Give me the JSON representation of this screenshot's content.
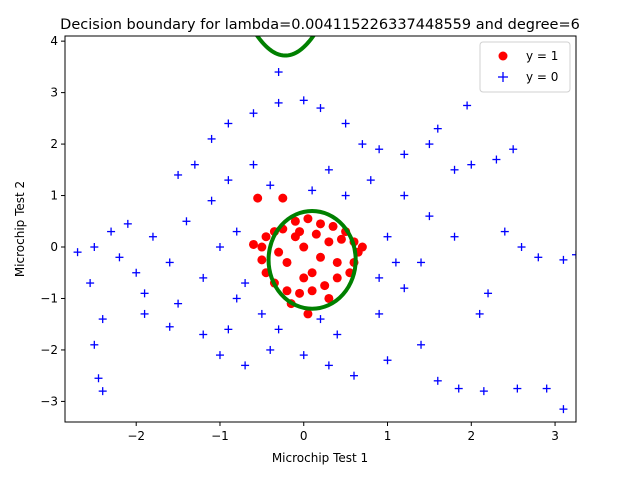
{
  "chart_data": {
    "type": "scatter",
    "title": "Decision boundary for lambda=0.004115226337448559 and degree=6",
    "xlabel": "Microchip Test 1",
    "ylabel": "Microchip Test 2",
    "xlim": [
      -2.85,
      3.25
    ],
    "ylim": [
      -3.4,
      4.1
    ],
    "xticks": [
      -2,
      -1,
      0,
      1,
      2,
      3
    ],
    "yticks": [
      -3,
      -2,
      -1,
      0,
      1,
      2,
      3,
      4
    ],
    "grid": false,
    "legend": {
      "placement": "top-right"
    },
    "series": [
      {
        "name": "y = 1",
        "marker": "circle",
        "color": "#ff0000",
        "points": [
          [
            -0.25,
            0.35
          ],
          [
            -0.1,
            0.5
          ],
          [
            0.05,
            0.55
          ],
          [
            0.2,
            0.45
          ],
          [
            0.35,
            0.4
          ],
          [
            0.5,
            0.3
          ],
          [
            0.6,
            0.1
          ],
          [
            0.65,
            -0.1
          ],
          [
            0.6,
            -0.3
          ],
          [
            0.55,
            -0.5
          ],
          [
            0.4,
            -0.6
          ],
          [
            0.25,
            -0.75
          ],
          [
            0.1,
            -0.85
          ],
          [
            -0.05,
            -0.9
          ],
          [
            -0.2,
            -0.85
          ],
          [
            -0.35,
            -0.7
          ],
          [
            -0.45,
            -0.5
          ],
          [
            -0.5,
            -0.25
          ],
          [
            -0.5,
            0.0
          ],
          [
            -0.45,
            0.2
          ],
          [
            -0.35,
            0.3
          ],
          [
            0.0,
            0.0
          ],
          [
            0.2,
            -0.2
          ],
          [
            -0.2,
            -0.3
          ],
          [
            0.3,
            0.1
          ],
          [
            -0.1,
            0.2
          ],
          [
            0.1,
            -0.5
          ],
          [
            -0.3,
            -0.1
          ],
          [
            0.4,
            -0.3
          ],
          [
            0.0,
            -0.6
          ],
          [
            0.15,
            0.25
          ],
          [
            -0.25,
            0.95
          ],
          [
            -0.55,
            0.95
          ],
          [
            -0.6,
            0.05
          ],
          [
            0.7,
            0.0
          ],
          [
            0.05,
            -1.3
          ],
          [
            -0.15,
            -1.1
          ],
          [
            0.3,
            -1.0
          ],
          [
            -0.05,
            0.3
          ],
          [
            0.45,
            0.15
          ]
        ]
      },
      {
        "name": "y = 0",
        "marker": "plus",
        "color": "#0000ff",
        "points": [
          [
            -2.7,
            -0.1
          ],
          [
            -2.5,
            0.0
          ],
          [
            -2.3,
            0.3
          ],
          [
            -2.1,
            0.45
          ],
          [
            -2.55,
            -0.7
          ],
          [
            -2.4,
            -1.4
          ],
          [
            -2.5,
            -1.9
          ],
          [
            -2.45,
            -2.55
          ],
          [
            -2.4,
            -2.8
          ],
          [
            -1.9,
            -1.3
          ],
          [
            -1.6,
            -1.55
          ],
          [
            -1.5,
            1.4
          ],
          [
            -1.3,
            1.6
          ],
          [
            -1.1,
            2.1
          ],
          [
            -0.9,
            2.4
          ],
          [
            -0.6,
            2.6
          ],
          [
            -0.3,
            2.8
          ],
          [
            0.0,
            2.85
          ],
          [
            0.2,
            2.7
          ],
          [
            -0.3,
            3.4
          ],
          [
            0.5,
            2.4
          ],
          [
            0.7,
            2.0
          ],
          [
            0.9,
            1.9
          ],
          [
            1.2,
            1.8
          ],
          [
            1.5,
            2.0
          ],
          [
            1.6,
            2.3
          ],
          [
            1.8,
            1.5
          ],
          [
            2.0,
            1.6
          ],
          [
            2.3,
            1.7
          ],
          [
            2.5,
            1.9
          ],
          [
            1.95,
            2.75
          ],
          [
            2.4,
            0.3
          ],
          [
            2.6,
            0.0
          ],
          [
            2.8,
            -0.2
          ],
          [
            3.1,
            -0.25
          ],
          [
            3.25,
            -0.15
          ],
          [
            2.2,
            -0.9
          ],
          [
            2.1,
            -1.3
          ],
          [
            1.6,
            -2.6
          ],
          [
            1.85,
            -2.75
          ],
          [
            2.15,
            -2.8
          ],
          [
            2.55,
            -2.75
          ],
          [
            2.9,
            -2.75
          ],
          [
            3.1,
            -3.15
          ],
          [
            1.4,
            -1.9
          ],
          [
            1.0,
            -2.2
          ],
          [
            0.6,
            -2.5
          ],
          [
            0.3,
            -2.3
          ],
          [
            0.0,
            -2.1
          ],
          [
            -0.4,
            -2.0
          ],
          [
            -0.7,
            -2.3
          ],
          [
            -1.0,
            -2.1
          ],
          [
            -1.2,
            -1.7
          ],
          [
            -0.8,
            -1.0
          ],
          [
            -1.2,
            -0.6
          ],
          [
            -1.6,
            -0.3
          ],
          [
            -2.0,
            -0.5
          ],
          [
            -1.8,
            0.2
          ],
          [
            -1.4,
            0.5
          ],
          [
            -1.1,
            0.9
          ],
          [
            -0.9,
            1.3
          ],
          [
            -0.6,
            1.6
          ],
          [
            0.3,
            1.5
          ],
          [
            0.8,
            1.3
          ],
          [
            1.2,
            1.0
          ],
          [
            1.5,
            0.6
          ],
          [
            1.8,
            0.2
          ],
          [
            1.4,
            -0.3
          ],
          [
            1.2,
            -0.8
          ],
          [
            0.9,
            -1.3
          ],
          [
            0.4,
            -1.7
          ],
          [
            -0.3,
            -1.6
          ],
          [
            -0.9,
            -1.6
          ],
          [
            -1.5,
            -1.1
          ],
          [
            -1.9,
            -0.9
          ],
          [
            -2.2,
            -0.2
          ],
          [
            1.0,
            0.2
          ],
          [
            0.9,
            -0.6
          ],
          [
            -0.8,
            0.3
          ],
          [
            -0.7,
            -0.7
          ],
          [
            0.1,
            1.1
          ],
          [
            0.5,
            1.0
          ],
          [
            -0.4,
            1.2
          ],
          [
            1.1,
            -0.3
          ],
          [
            -1.0,
            0.0
          ],
          [
            0.2,
            -1.4
          ],
          [
            -0.5,
            -1.3
          ]
        ]
      }
    ],
    "boundary": {
      "color": "#008000",
      "ellipse": {
        "cx": 0.1,
        "cy": -0.25,
        "rx": 0.52,
        "ry": 0.95
      },
      "top_curve": {
        "vertex_x": -0.22,
        "vertex_y": 3.72,
        "a": 3.4,
        "x_range": [
          -0.7,
          0.2
        ]
      }
    }
  }
}
